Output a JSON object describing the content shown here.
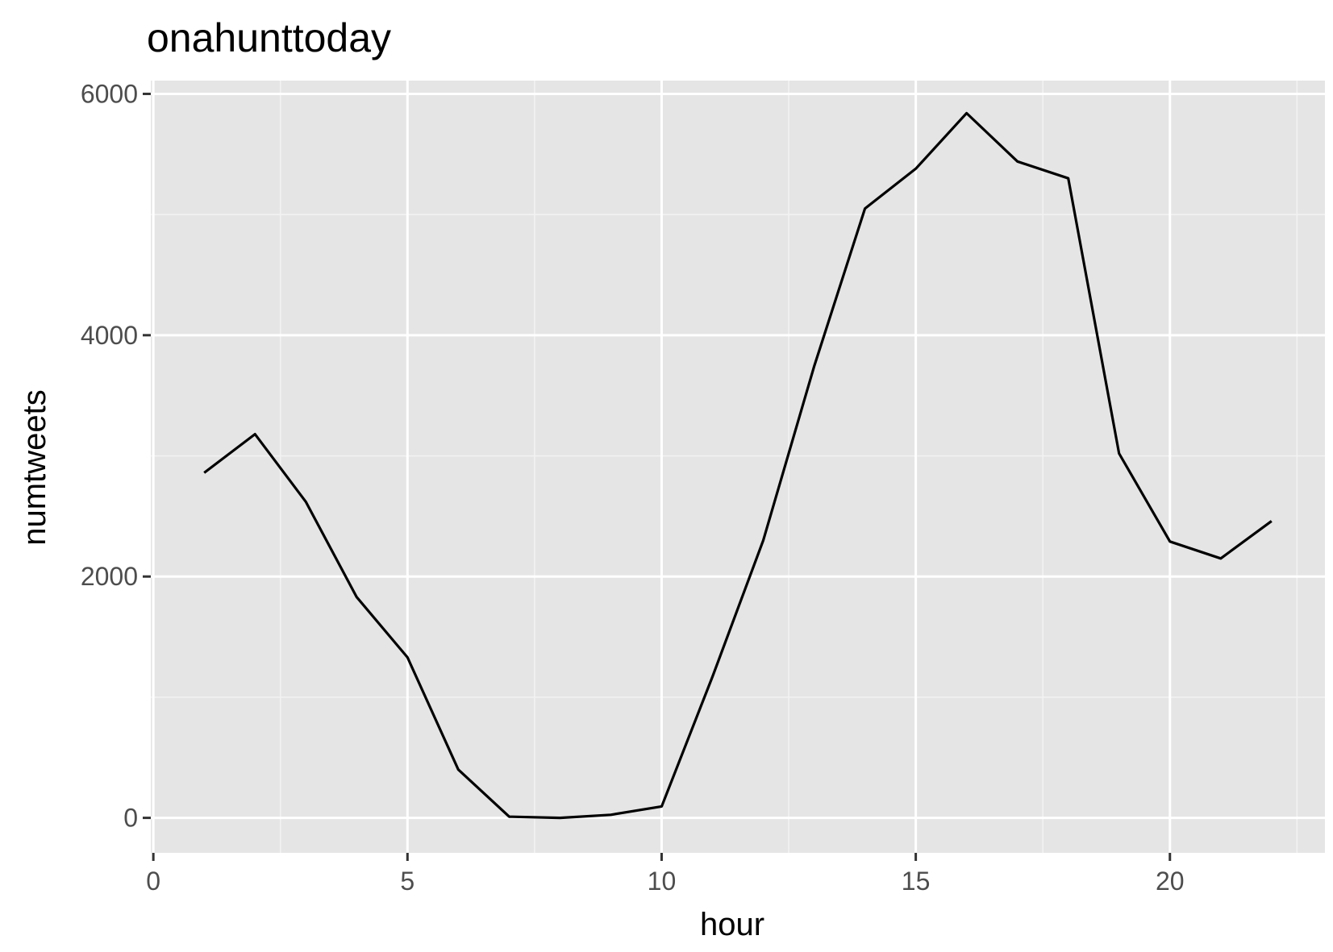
{
  "chart_data": {
    "type": "line",
    "title": "onahunttoday",
    "xlabel": "hour",
    "ylabel": "numtweets",
    "xlim": [
      -0.05,
      23.05
    ],
    "ylim": [
      -290,
      6110
    ],
    "x_ticks": [
      0,
      5,
      10,
      15,
      20
    ],
    "x_tick_labels": [
      "0",
      "5",
      "10",
      "15",
      "20"
    ],
    "x_minor_ticks": [
      2.5,
      7.5,
      12.5,
      17.5,
      22.5
    ],
    "y_ticks": [
      0,
      2000,
      4000,
      6000
    ],
    "y_tick_labels": [
      "0",
      "2000",
      "4000",
      "6000"
    ],
    "y_minor_ticks": [
      1000,
      3000,
      5000
    ],
    "grid": true,
    "series": [
      {
        "x": [
          1,
          2,
          3,
          4,
          5,
          6,
          7,
          8,
          9,
          10,
          11,
          12,
          13,
          14,
          15,
          16,
          17,
          18,
          19,
          20,
          21,
          22
        ],
        "values": [
          2860,
          3180,
          2620,
          1830,
          1330,
          400,
          10,
          0,
          25,
          95,
          1170,
          2300,
          3740,
          5050,
          5380,
          5840,
          5440,
          5300,
          3020,
          2290,
          2150,
          2460
        ],
        "color": "#000000"
      }
    ]
  },
  "colors": {
    "panel_background": "#e5e5e5",
    "grid_major": "#ffffff",
    "grid_minor": "#f2f2f2",
    "line": "#000000",
    "tick_mark": "#333333"
  }
}
